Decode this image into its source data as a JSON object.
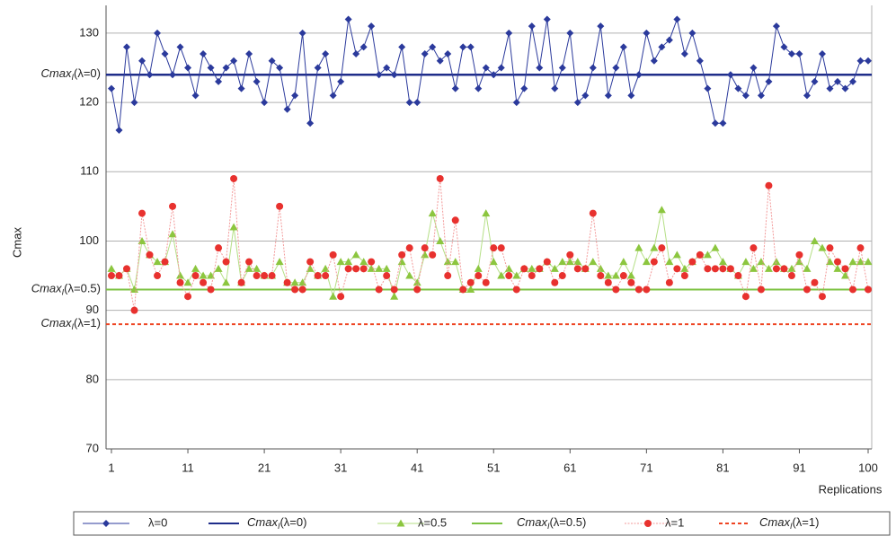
{
  "chart_data": {
    "type": "line",
    "ylabel": "Cmax",
    "xlabel": "Replications",
    "xlim": [
      1,
      100
    ],
    "xticks": [
      1,
      11,
      21,
      31,
      41,
      51,
      61,
      71,
      81,
      91,
      100
    ],
    "ylim": [
      70,
      134
    ],
    "yticks": [
      70,
      80,
      90,
      100,
      110,
      120,
      130
    ],
    "grid": true,
    "legend": "bottom",
    "series": [
      {
        "name": "λ=0",
        "color": "#2b3a9c",
        "marker": "diamond",
        "values": [
          122,
          116,
          128,
          120,
          126,
          124,
          130,
          127,
          124,
          128,
          125,
          121,
          127,
          125,
          123,
          125,
          126,
          122,
          127,
          123,
          120,
          126,
          125,
          119,
          121,
          130,
          117,
          125,
          127,
          121,
          123,
          132,
          127,
          128,
          131,
          124,
          125,
          124,
          128,
          120,
          120,
          127,
          128,
          126,
          127,
          122,
          128,
          128,
          122,
          125,
          124,
          125,
          130,
          120,
          122,
          131,
          125,
          132,
          122,
          125,
          130,
          120,
          121,
          125,
          131,
          121,
          125,
          128,
          121,
          124,
          130,
          126,
          128,
          129,
          132,
          127,
          130,
          126,
          122,
          117,
          117,
          124,
          122,
          121,
          125,
          121,
          123,
          131,
          128,
          127,
          127,
          121,
          123,
          127,
          122,
          123,
          122,
          123,
          126,
          126
        ]
      },
      {
        "name": "λ=0.5",
        "color": "#8cc63f",
        "marker": "triangle",
        "values": [
          96,
          95,
          96,
          93,
          100,
          98,
          97,
          97,
          101,
          95,
          94,
          96,
          95,
          95,
          96,
          94,
          102,
          94,
          96,
          96,
          95,
          95,
          97,
          94,
          94,
          94,
          96,
          95,
          96,
          92,
          97,
          97,
          98,
          97,
          96,
          96,
          96,
          92,
          97,
          95,
          94,
          98,
          104,
          100,
          97,
          97,
          93,
          93,
          96,
          104,
          97,
          95,
          96,
          95,
          96,
          96,
          96,
          97,
          96,
          97,
          97,
          97,
          96,
          97,
          96,
          95,
          95,
          97,
          95,
          99,
          97,
          99,
          104.5,
          97,
          98,
          96,
          97,
          98,
          98,
          99,
          97,
          96,
          95,
          97,
          96,
          97,
          96,
          97,
          96,
          96,
          97,
          96,
          100,
          99,
          97,
          96,
          95,
          97,
          97,
          97
        ]
      },
      {
        "name": "λ=1",
        "color": "#e8312e",
        "marker": "circle",
        "values": [
          95,
          95,
          96,
          90,
          104,
          98,
          95,
          97,
          105,
          94,
          92,
          95,
          94,
          93,
          99,
          97,
          109,
          94,
          97,
          95,
          95,
          95,
          105,
          94,
          93,
          93,
          97,
          95,
          95,
          98,
          92,
          96,
          96,
          96,
          97,
          93,
          95,
          93,
          98,
          99,
          93,
          99,
          98,
          109,
          95,
          103,
          93,
          94,
          95,
          94,
          99,
          99,
          95,
          93,
          96,
          95,
          96,
          97,
          94,
          95,
          98,
          96,
          96,
          104,
          95,
          94,
          93,
          95,
          94,
          93,
          93,
          97,
          99,
          94,
          96,
          95,
          97,
          98,
          96,
          96,
          96,
          96,
          95,
          92,
          99,
          93,
          108,
          96,
          96,
          95,
          98,
          93,
          94,
          92,
          99,
          97,
          96,
          93,
          99,
          93
        ]
      }
    ],
    "reference_lines": [
      {
        "label": {
          "main": "Cmax",
          "sub": "I",
          "rest": "(λ=0)"
        },
        "value": 124,
        "color": "#1f2d8a",
        "dash": false
      },
      {
        "label": {
          "main": "Cmax",
          "sub": "I",
          "rest": "(λ=0.5)"
        },
        "value": 93,
        "color": "#7cc242",
        "dash": false
      },
      {
        "label": {
          "main": "Cmax",
          "sub": "I",
          "rest": "(λ=1)"
        },
        "value": 88,
        "color": "#ee4422",
        "dash": true
      }
    ]
  }
}
